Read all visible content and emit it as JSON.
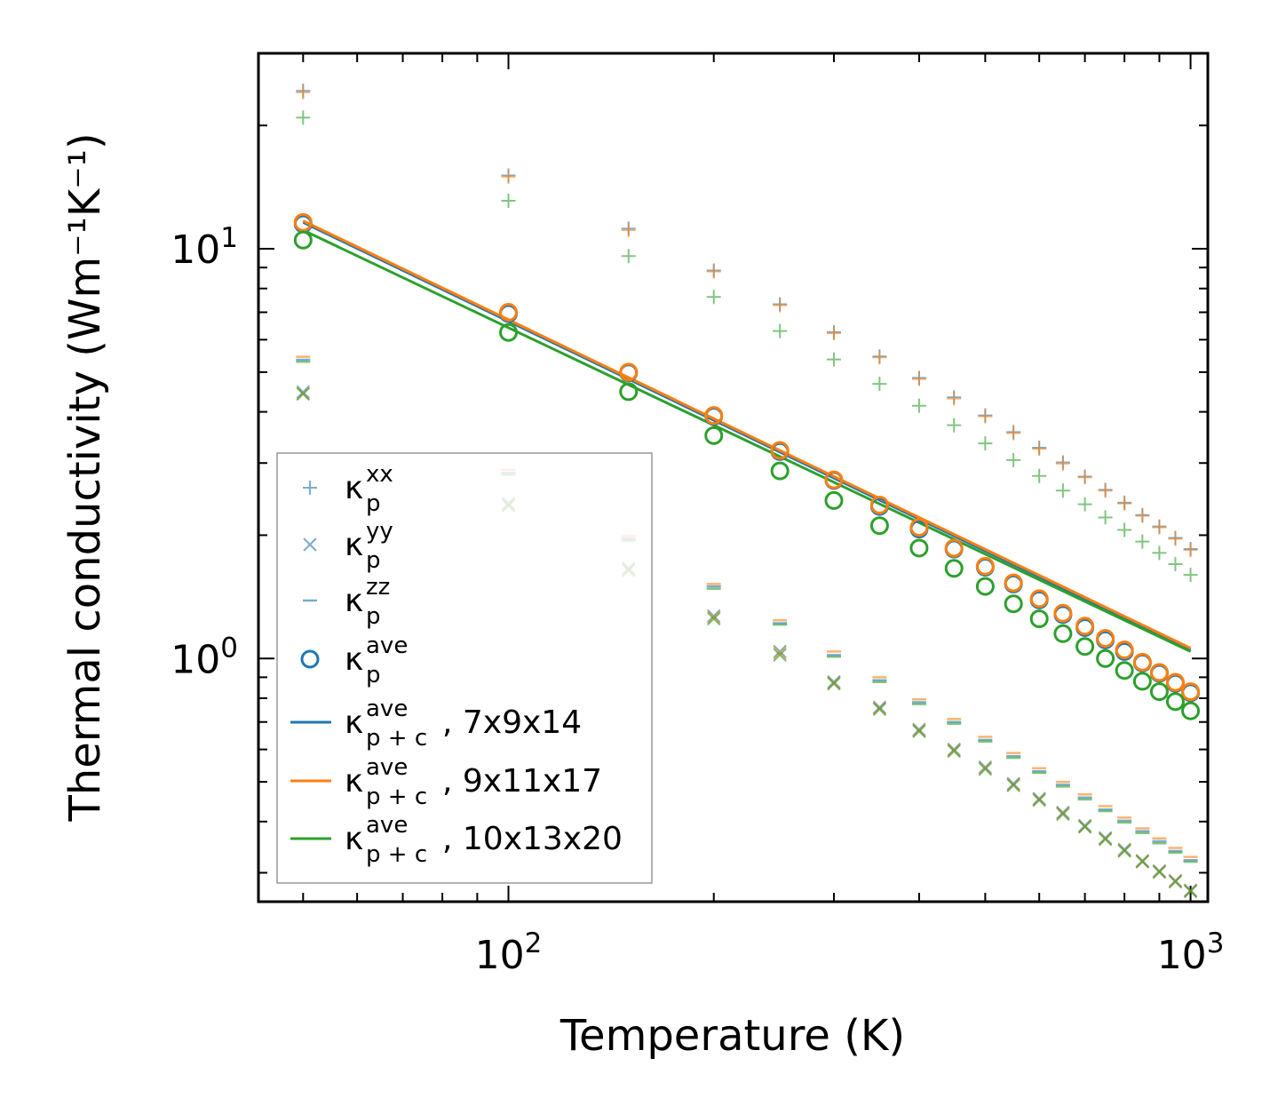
{
  "chart_data": {
    "type": "scatter",
    "title": "",
    "xlabel": "Temperature (K)",
    "ylabel": "Thermal conductivity (Wm⁻¹K⁻¹)",
    "x_scale": "log",
    "y_scale": "log",
    "xlim": [
      43,
      1060
    ],
    "ylim": [
      0.255,
      30
    ],
    "x_ticks": [
      {
        "value": 100,
        "label": "10",
        "exp": "2"
      },
      {
        "value": 1000,
        "label": "10",
        "exp": "3"
      }
    ],
    "y_ticks": [
      {
        "value": 1,
        "label": "10",
        "exp": "0"
      },
      {
        "value": 10,
        "label": "10",
        "exp": "1"
      }
    ],
    "x": [
      50,
      100,
      150,
      200,
      250,
      300,
      350,
      400,
      450,
      500,
      550,
      600,
      650,
      700,
      750,
      800,
      850,
      900,
      950,
      1000
    ],
    "colors": {
      "blue": "#1f77b4",
      "orange": "#ff7f0e",
      "green": "#2ca02c"
    },
    "series": [
      {
        "name": "xx 7x9x14",
        "kind": "plus",
        "color": "#1f77b4",
        "values": [
          24.3,
          15.1,
          11.2,
          8.85,
          7.32,
          6.26,
          5.46,
          4.84,
          4.34,
          3.92,
          3.57,
          3.27,
          3.01,
          2.78,
          2.58,
          2.4,
          2.24,
          2.1,
          1.97,
          1.85
        ]
      },
      {
        "name": "xx 9x11x17",
        "kind": "plus",
        "color": "#ff7f0e",
        "values": [
          24.1,
          15.0,
          11.1,
          8.8,
          7.28,
          6.22,
          5.43,
          4.81,
          4.31,
          3.9,
          3.55,
          3.25,
          2.99,
          2.77,
          2.57,
          2.39,
          2.23,
          2.09,
          1.96,
          1.84
        ]
      },
      {
        "name": "xx 10x13x20",
        "kind": "plus",
        "color": "#2ca02c",
        "values": [
          20.9,
          13.1,
          9.6,
          7.63,
          6.3,
          5.37,
          4.68,
          4.14,
          3.71,
          3.35,
          3.05,
          2.79,
          2.57,
          2.38,
          2.21,
          2.06,
          1.93,
          1.81,
          1.7,
          1.6
        ]
      },
      {
        "name": "yy 7x9x14",
        "kind": "cross",
        "color": "#1f77b4",
        "values": [
          4.47,
          2.39,
          1.66,
          1.27,
          1.04,
          0.877,
          0.76,
          0.671,
          0.6,
          0.543,
          0.495,
          0.455,
          0.421,
          0.391,
          0.365,
          0.342,
          0.321,
          0.303,
          0.287,
          0.272
        ]
      },
      {
        "name": "yy 9x11x17",
        "kind": "cross",
        "color": "#ff7f0e",
        "values": [
          4.43,
          2.37,
          1.65,
          1.26,
          1.03,
          0.871,
          0.755,
          0.667,
          0.597,
          0.54,
          0.492,
          0.453,
          0.419,
          0.389,
          0.363,
          0.34,
          0.32,
          0.302,
          0.286,
          0.271
        ]
      },
      {
        "name": "yy 10x13x20",
        "kind": "cross",
        "color": "#2ca02c",
        "values": [
          4.42,
          2.36,
          1.64,
          1.25,
          1.02,
          0.868,
          0.752,
          0.664,
          0.594,
          0.537,
          0.49,
          0.451,
          0.417,
          0.388,
          0.362,
          0.339,
          0.319,
          0.301,
          0.285,
          0.27
        ]
      },
      {
        "name": "zz 7x9x14",
        "kind": "dash",
        "color": "#1f77b4",
        "values": [
          5.36,
          2.84,
          1.96,
          1.5,
          1.22,
          1.02,
          0.885,
          0.782,
          0.7,
          0.633,
          0.578,
          0.531,
          0.492,
          0.458,
          0.428,
          0.402,
          0.379,
          0.358,
          0.339,
          0.322
        ]
      },
      {
        "name": "zz 9x11x17",
        "kind": "dash",
        "color": "#ff7f0e",
        "values": [
          5.45,
          2.89,
          1.99,
          1.52,
          1.24,
          1.04,
          0.9,
          0.795,
          0.712,
          0.644,
          0.588,
          0.54,
          0.5,
          0.466,
          0.436,
          0.409,
          0.385,
          0.364,
          0.345,
          0.328
        ]
      },
      {
        "name": "zz 10x13x20",
        "kind": "dash",
        "color": "#2ca02c",
        "values": [
          5.3,
          2.81,
          1.94,
          1.48,
          1.21,
          1.01,
          0.876,
          0.774,
          0.693,
          0.627,
          0.572,
          0.526,
          0.487,
          0.453,
          0.424,
          0.398,
          0.375,
          0.354,
          0.336,
          0.319
        ]
      },
      {
        "name": "ave 7x9x14",
        "kind": "circle",
        "color": "#1f77b4",
        "values": [
          11.5,
          6.95,
          4.98,
          3.9,
          3.2,
          2.72,
          2.35,
          2.07,
          1.85,
          1.67,
          1.52,
          1.39,
          1.28,
          1.19,
          1.11,
          1.04,
          0.975,
          0.92,
          0.87,
          0.825
        ]
      },
      {
        "name": "ave 9x11x17",
        "kind": "circle",
        "color": "#ff7f0e",
        "values": [
          11.6,
          7.0,
          5.0,
          3.92,
          3.22,
          2.73,
          2.37,
          2.09,
          1.86,
          1.68,
          1.53,
          1.4,
          1.29,
          1.2,
          1.12,
          1.05,
          0.98,
          0.925,
          0.875,
          0.83
        ]
      },
      {
        "name": "ave 10x13x20",
        "kind": "circle",
        "color": "#2ca02c",
        "values": [
          10.5,
          6.25,
          4.48,
          3.5,
          2.87,
          2.43,
          2.11,
          1.86,
          1.66,
          1.5,
          1.36,
          1.25,
          1.15,
          1.07,
          1.0,
          0.935,
          0.88,
          0.83,
          0.785,
          0.745
        ]
      },
      {
        "name": "p+c 7x9x14",
        "kind": "line",
        "color": "#1f77b4",
        "x_range": [
          50,
          1000
        ],
        "y_range": [
          11.6,
          1.05
        ]
      },
      {
        "name": "p+c 9x11x17",
        "kind": "line",
        "color": "#ff7f0e",
        "x_range": [
          50,
          1000
        ],
        "y_range": [
          11.7,
          1.06
        ]
      },
      {
        "name": "p+c 10x13x20",
        "kind": "line",
        "color": "#2ca02c",
        "x_range": [
          50,
          1000
        ],
        "y_range": [
          11.1,
          1.04
        ]
      }
    ],
    "legend": {
      "placement": "lower-left",
      "entries": [
        {
          "marker": "plus",
          "color": "#1f77b4",
          "symbol": "κ",
          "sub": "p",
          "sup": "xx",
          "suffix": ""
        },
        {
          "marker": "cross",
          "color": "#1f77b4",
          "symbol": "κ",
          "sub": "p",
          "sup": "yy",
          "suffix": ""
        },
        {
          "marker": "dash",
          "color": "#1f77b4",
          "symbol": "κ",
          "sub": "p",
          "sup": "zz",
          "suffix": ""
        },
        {
          "marker": "circle",
          "color": "#1f77b4",
          "symbol": "κ",
          "sub": "p",
          "sup": "ave",
          "suffix": ""
        },
        {
          "marker": "line",
          "color": "#1f77b4",
          "symbol": "κ",
          "sub": "p + c",
          "sup": "ave",
          "suffix": ", 7x9x14"
        },
        {
          "marker": "line",
          "color": "#ff7f0e",
          "symbol": "κ",
          "sub": "p + c",
          "sup": "ave",
          "suffix": ", 9x11x17"
        },
        {
          "marker": "line",
          "color": "#2ca02c",
          "symbol": "κ",
          "sub": "p + c",
          "sup": "ave",
          "suffix": ", 10x13x20"
        }
      ]
    }
  }
}
